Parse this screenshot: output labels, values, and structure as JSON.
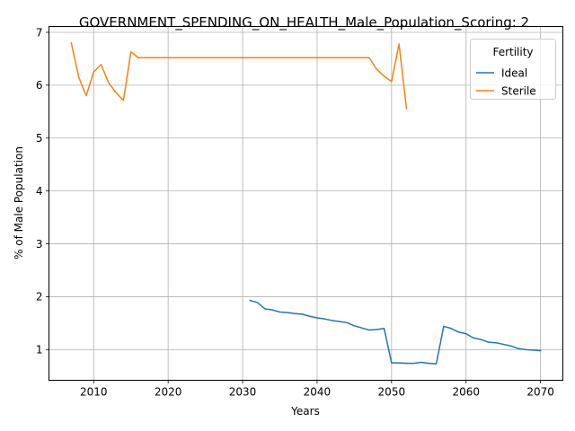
{
  "chart_data": {
    "type": "line",
    "title": "GOVERNMENT_SPENDING_ON_HEALTH_Male_Population_Scoring: 2",
    "xlabel": "Years",
    "ylabel": "% of Male Population",
    "xlim": [
      2004,
      2073
    ],
    "ylim": [
      0.42,
      7.11
    ],
    "xticks": [
      2010,
      2020,
      2030,
      2040,
      2050,
      2060,
      2070
    ],
    "yticks": [
      1,
      2,
      3,
      4,
      5,
      6,
      7
    ],
    "grid": true,
    "legend": {
      "title": "Fertility",
      "position": "top-right"
    },
    "series": [
      {
        "name": "Ideal",
        "color": "#1f77b4",
        "x": [
          2031,
          2032,
          2033,
          2034,
          2035,
          2036,
          2037,
          2038,
          2039,
          2040,
          2041,
          2042,
          2043,
          2044,
          2045,
          2046,
          2047,
          2048,
          2049,
          2050,
          2051,
          2052,
          2053,
          2054,
          2055,
          2056,
          2057,
          2058,
          2059,
          2060,
          2061,
          2062,
          2063,
          2064,
          2065,
          2066,
          2067,
          2068,
          2069,
          2070
        ],
        "y": [
          1.93,
          1.89,
          1.77,
          1.75,
          1.71,
          1.7,
          1.68,
          1.67,
          1.63,
          1.6,
          1.58,
          1.55,
          1.53,
          1.51,
          1.45,
          1.41,
          1.37,
          1.38,
          1.4,
          0.75,
          0.75,
          0.74,
          0.74,
          0.76,
          0.74,
          0.73,
          1.44,
          1.4,
          1.33,
          1.3,
          1.22,
          1.19,
          1.14,
          1.13,
          1.1,
          1.07,
          1.02,
          1.0,
          0.99,
          0.98
        ]
      },
      {
        "name": "Sterile",
        "color": "#ff7f0e",
        "x": [
          2007,
          2008,
          2009,
          2010,
          2011,
          2012,
          2013,
          2014,
          2015,
          2016,
          2017,
          2018,
          2019,
          2020,
          2021,
          2022,
          2023,
          2024,
          2025,
          2026,
          2027,
          2028,
          2029,
          2030,
          2031,
          2032,
          2033,
          2034,
          2035,
          2036,
          2037,
          2038,
          2039,
          2040,
          2041,
          2042,
          2043,
          2044,
          2045,
          2046,
          2047,
          2048,
          2049,
          2050,
          2051,
          2052
        ],
        "y": [
          6.8,
          6.15,
          5.8,
          6.25,
          6.39,
          6.05,
          5.86,
          5.71,
          6.63,
          6.52,
          6.52,
          6.52,
          6.52,
          6.52,
          6.52,
          6.52,
          6.52,
          6.52,
          6.52,
          6.52,
          6.52,
          6.52,
          6.52,
          6.52,
          6.52,
          6.52,
          6.52,
          6.52,
          6.52,
          6.52,
          6.52,
          6.52,
          6.52,
          6.52,
          6.52,
          6.52,
          6.52,
          6.52,
          6.52,
          6.52,
          6.52,
          6.3,
          6.17,
          6.07,
          6.78,
          5.56
        ]
      }
    ]
  }
}
